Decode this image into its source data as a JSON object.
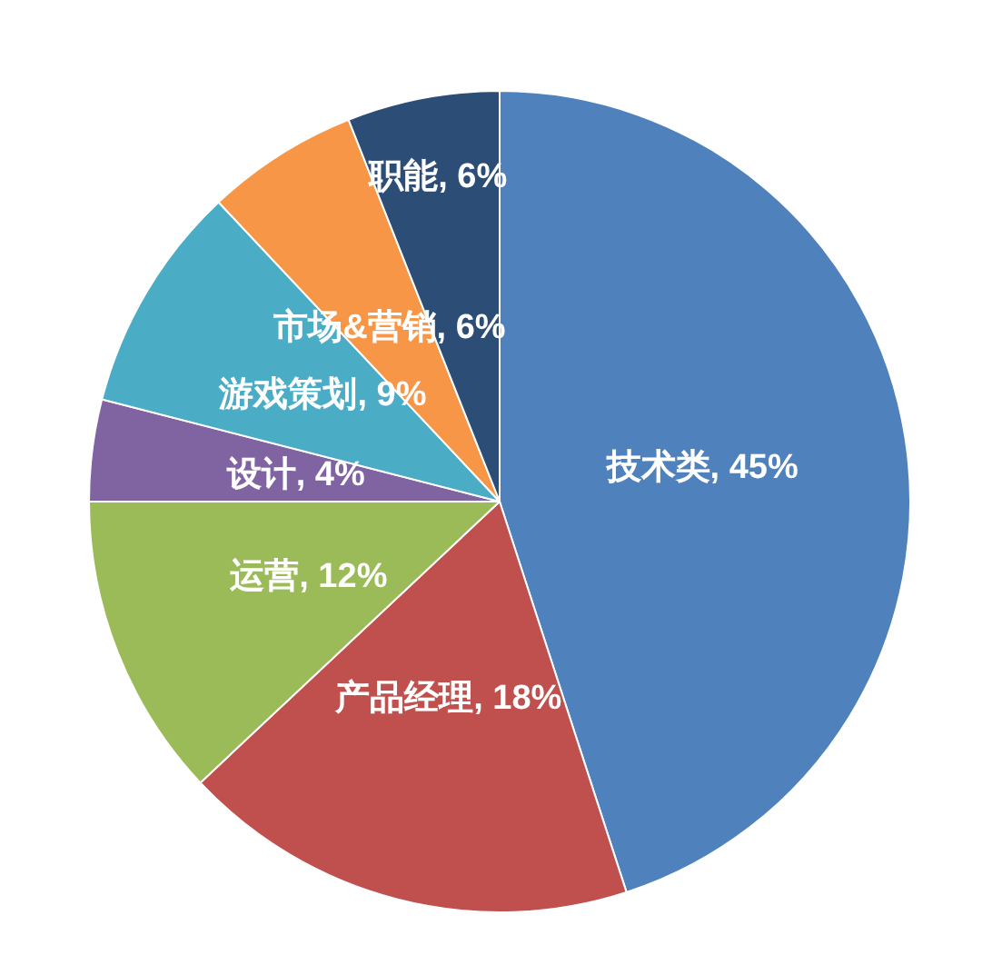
{
  "chart_data": {
    "type": "pie",
    "categories": [
      "技术类",
      "产品经理",
      "运营",
      "设计",
      "游戏策划",
      "市场&营销",
      "职能"
    ],
    "values": [
      45,
      18,
      12,
      4,
      9,
      6,
      6
    ],
    "colors": [
      "#4f81bd",
      "#c0504d",
      "#9bbb59",
      "#8064a2",
      "#4bacc6",
      "#f79646",
      "#2c4d75"
    ],
    "value_labels": [
      "45%",
      "18%",
      "12%",
      "4%",
      "9%",
      "6%",
      "6%"
    ]
  }
}
